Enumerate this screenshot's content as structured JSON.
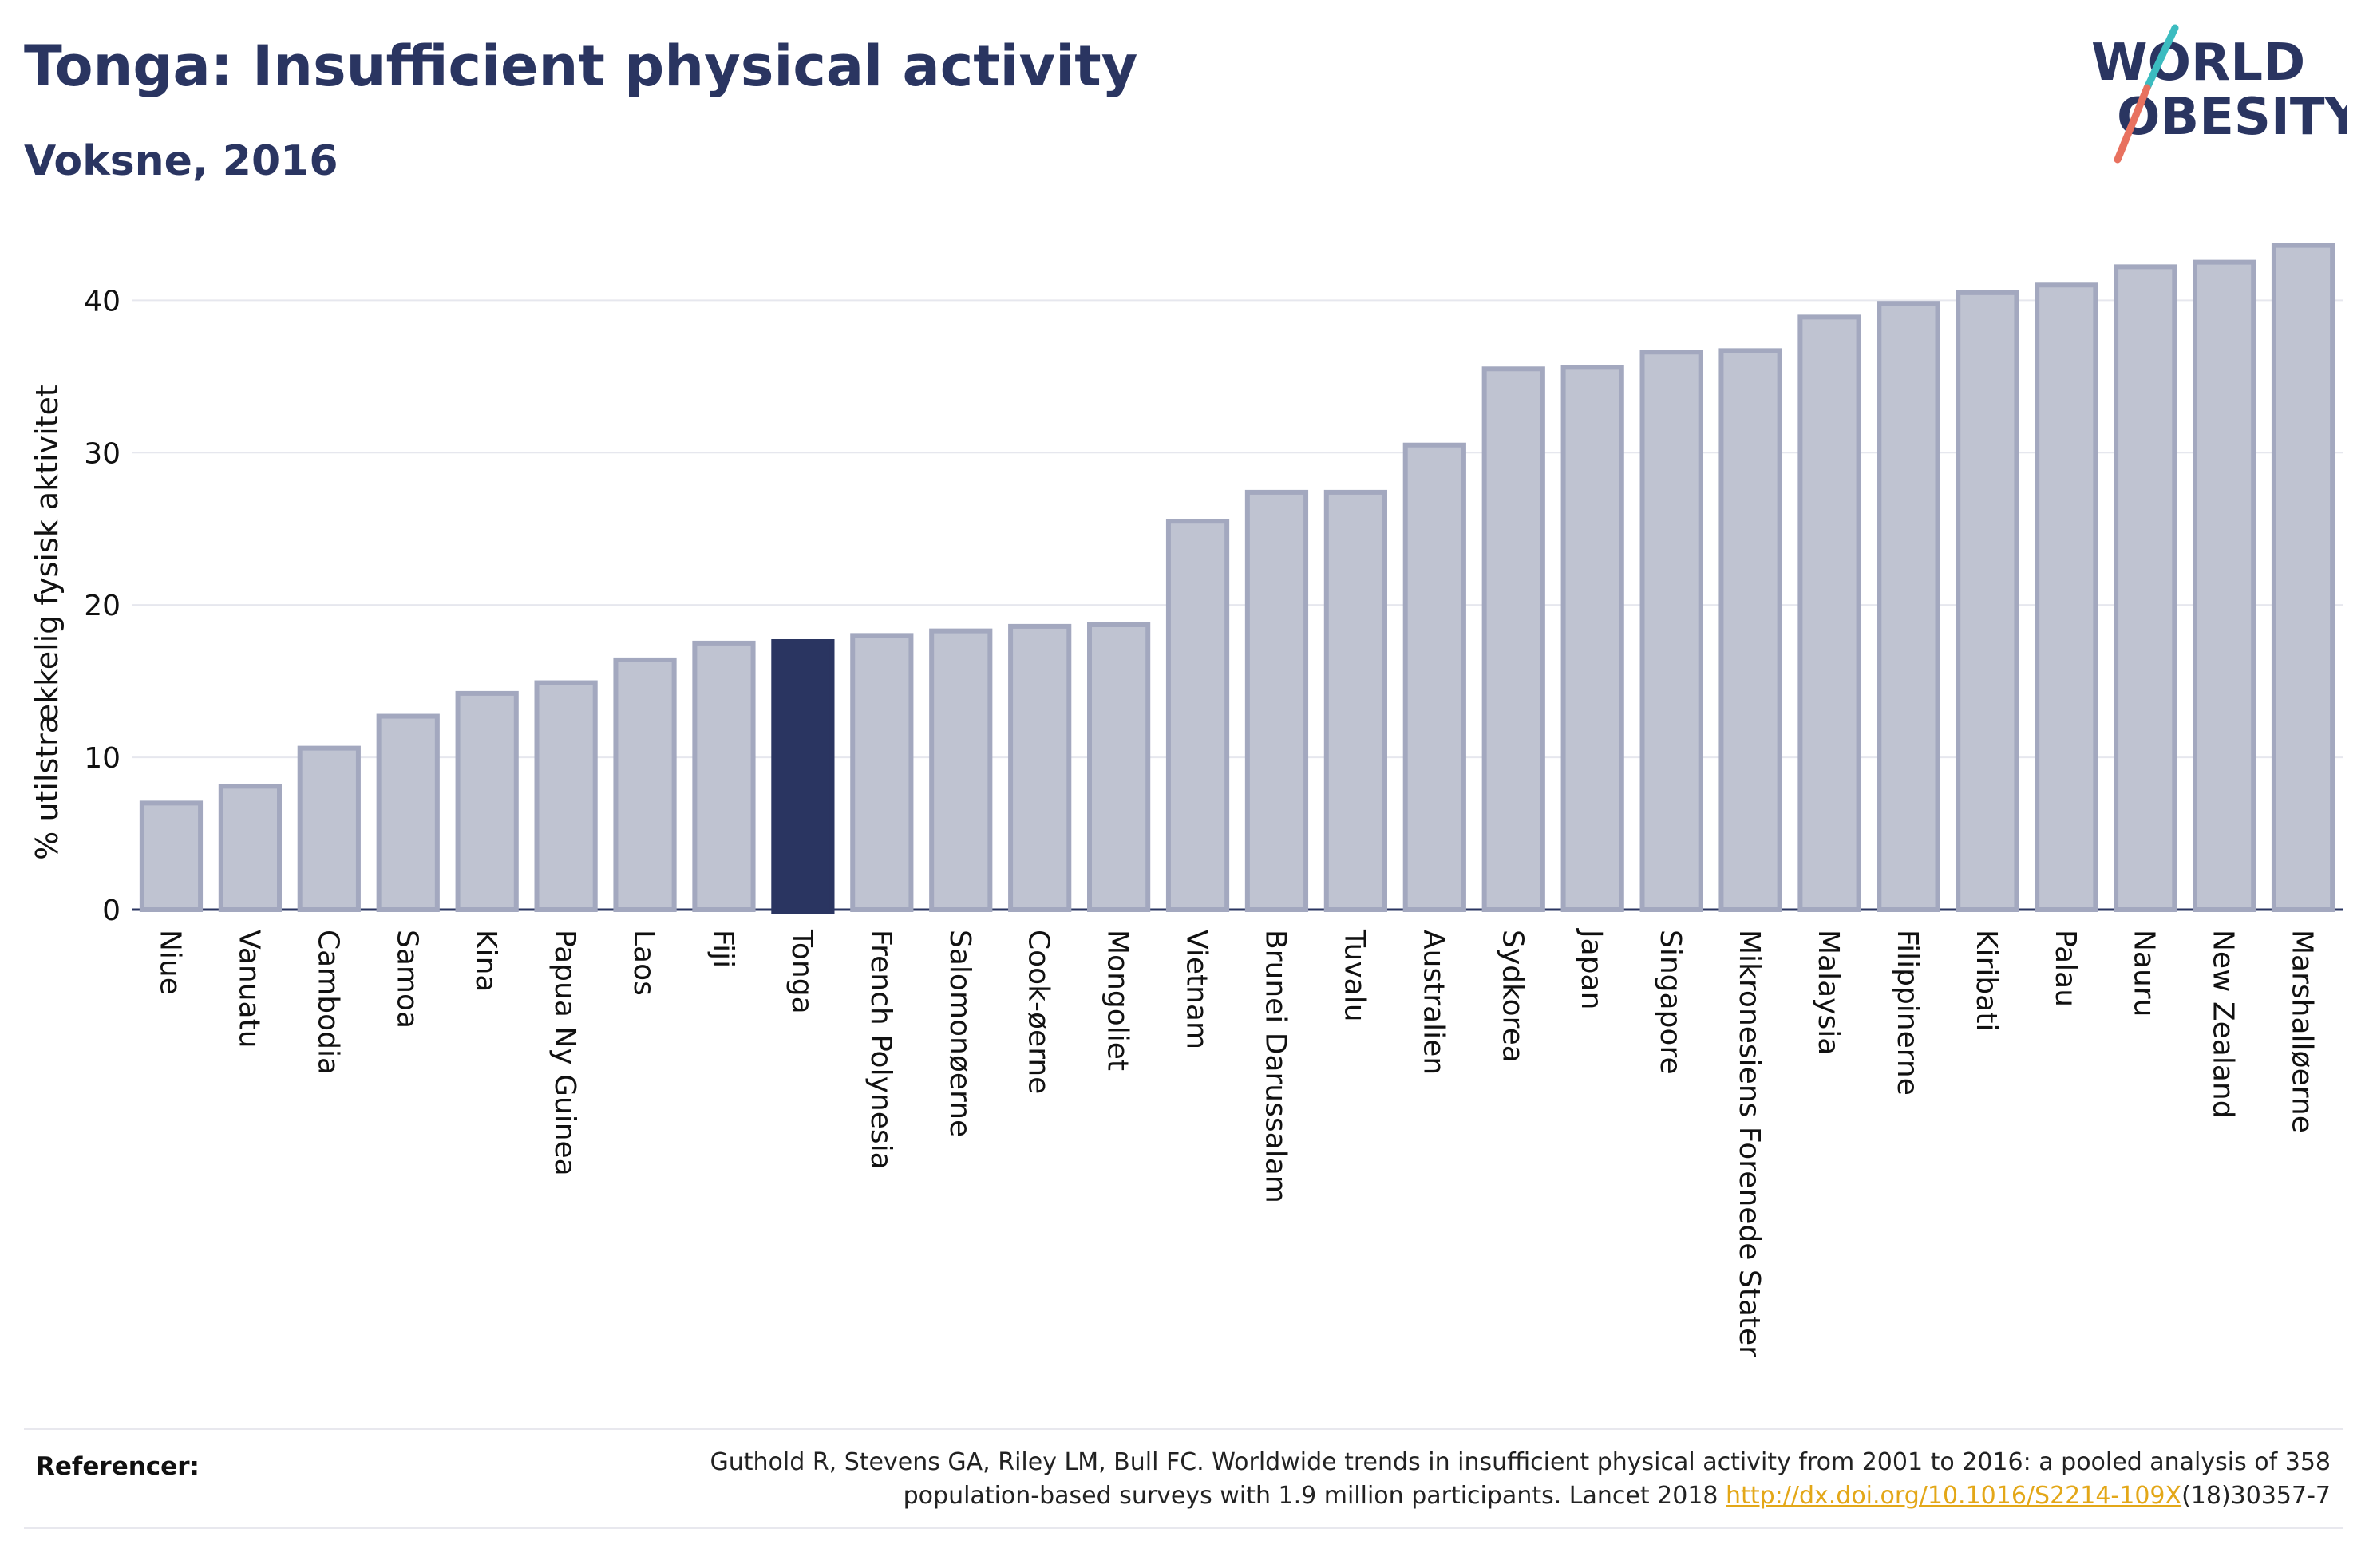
{
  "header": {
    "title": "Tonga: Insufficient physical activity",
    "subtitle": "Voksne, 2016"
  },
  "logo": {
    "line1": "WORLD",
    "line2": "OBESITY",
    "colors": {
      "text": "#2a3561",
      "slash_teal": "#3cbcc0",
      "slash_coral": "#e8715f"
    }
  },
  "references": {
    "label": "Referencer:",
    "text_line1": "Guthold R, Stevens GA, Riley LM, Bull FC. Worldwide trends in insufficient physical activity from 2001 to 2016: a pooled analysis of 358",
    "text_line2_before": "population-based surveys with 1.9 million participants. Lancet 2018 ",
    "link": "http://dx.doi.org/10.1016/S2214-109X",
    "text_line2_after": "(18)30357-7"
  },
  "chart_data": {
    "type": "bar",
    "title": "",
    "xlabel": "",
    "ylabel": "% utilstrækkelig fysisk aktivitet",
    "ylim": [
      0,
      44
    ],
    "yticks": [
      0,
      10,
      20,
      30,
      40
    ],
    "grid": true,
    "highlight": "Tonga",
    "colors": {
      "bar": "#bfc3d1",
      "bar_edge": "#a3a8bf",
      "highlight": "#2a3561"
    },
    "categories": [
      "Niue",
      "Vanuatu",
      "Cambodia",
      "Samoa",
      "Kina",
      "Papua Ny Guinea",
      "Laos",
      "Fiji",
      "Tonga",
      "French Polynesia",
      "Salomonøerne",
      "Cook-øerne",
      "Mongoliet",
      "Vietnam",
      "Brunei Darussalam",
      "Tuvalu",
      "Australien",
      "Sydkorea",
      "Japan",
      "Singapore",
      "Mikronesiens Forenede Stater",
      "Malaysia",
      "Filippinerne",
      "Kiribati",
      "Palau",
      "Nauru",
      "New Zealand",
      "Marshalløerne"
    ],
    "values": [
      7.0,
      8.1,
      10.6,
      12.7,
      14.2,
      14.9,
      16.4,
      17.5,
      17.6,
      18.0,
      18.3,
      18.6,
      18.7,
      25.5,
      27.4,
      27.4,
      30.5,
      35.5,
      35.6,
      36.6,
      36.7,
      38.9,
      39.8,
      40.5,
      41.0,
      42.2,
      42.5,
      43.6
    ]
  }
}
